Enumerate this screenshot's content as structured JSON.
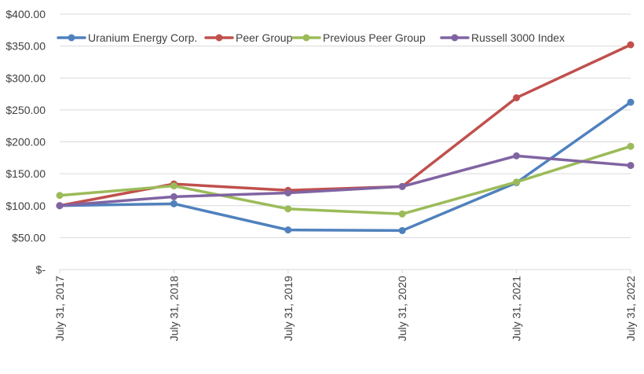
{
  "chart_data": {
    "type": "line",
    "title": "",
    "xlabel": "",
    "ylabel": "",
    "categories": [
      "July 31, 2017",
      "July 31, 2018",
      "July 31, 2019",
      "July 31, 2020",
      "July 31, 2021",
      "July 31, 2022"
    ],
    "ylim": [
      0,
      400
    ],
    "yticks": [
      0,
      50,
      100,
      150,
      200,
      250,
      300,
      350,
      400
    ],
    "ytick_labels": [
      "$-",
      "$50.00",
      "$100.00",
      "$150.00",
      "$200.00",
      "$250.00",
      "$300.00",
      "$350.00",
      "$400.00"
    ],
    "grid": true,
    "legend_position": "top",
    "series": [
      {
        "name": "Uranium Energy Corp.",
        "color": "#4f81bd",
        "values": [
          100,
          103,
          62,
          61,
          136,
          262
        ]
      },
      {
        "name": "Peer Group",
        "color": "#c0504d",
        "values": [
          100,
          134,
          124,
          130,
          269,
          352
        ]
      },
      {
        "name": "Previous Peer Group",
        "color": "#9bbb59",
        "values": [
          116,
          131,
          95,
          87,
          137,
          193
        ]
      },
      {
        "name": "Russell 3000 Index",
        "color": "#8064a2",
        "values": [
          100,
          114,
          120,
          130,
          178,
          163
        ]
      }
    ]
  }
}
